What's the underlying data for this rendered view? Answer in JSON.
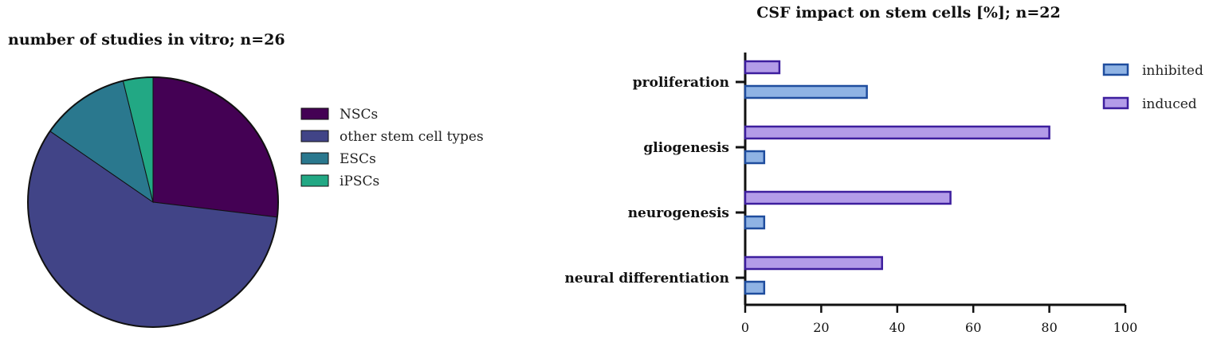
{
  "chart_data": [
    {
      "type": "pie",
      "title": "number of studies in vitro; n=26",
      "categories": [
        "NSCs",
        "other stem cell types",
        "ESCs",
        "iPSCs"
      ],
      "values": [
        7,
        15,
        3,
        1
      ],
      "colors": [
        "#440154",
        "#414487",
        "#2a788e",
        "#22a884"
      ],
      "legend": "right"
    },
    {
      "type": "bar",
      "orientation": "horizontal",
      "title": "CSF impact on stem cells [%]; n=22",
      "categories": [
        "proliferation",
        "gliogenesis",
        "neurogenesis",
        "neural differentiation"
      ],
      "series": [
        {
          "name": "induced",
          "values": [
            9,
            80,
            54,
            36
          ],
          "fill": "#b39ce8",
          "stroke": "#3d1e9e"
        },
        {
          "name": "inhibited",
          "values": [
            32,
            5,
            5,
            5
          ],
          "fill": "#8fb3e4",
          "stroke": "#1f4d9e"
        }
      ],
      "xlim": [
        0,
        100
      ],
      "xticks": [
        "0",
        "20",
        "40",
        "60",
        "80",
        "100"
      ],
      "legend": "top-right"
    }
  ]
}
